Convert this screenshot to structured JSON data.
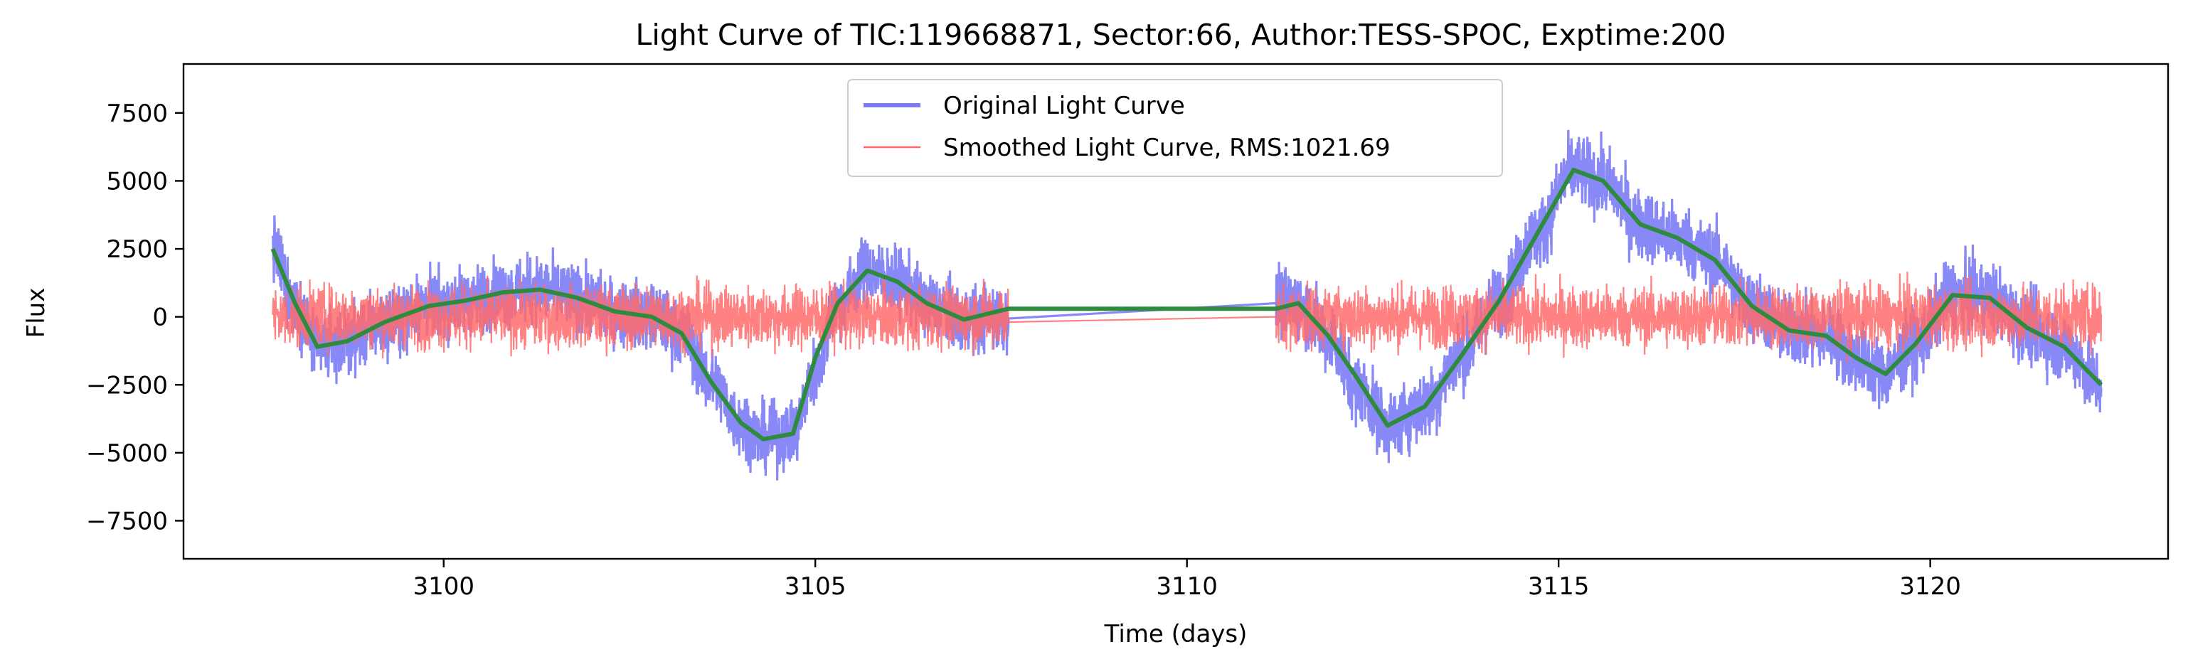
{
  "chart_data": {
    "type": "line",
    "title": "Light Curve of TIC:119668871, Sector:66, Author:TESS-SPOC, Exptime:200",
    "xlabel": "Time (days)",
    "ylabel": "Flux",
    "xlim": [
      3096.5,
      3123.2
    ],
    "ylim": [
      -8900,
      9300
    ],
    "xticks": [
      3100,
      3105,
      3110,
      3115,
      3120
    ],
    "yticks": [
      -7500,
      -5000,
      -2500,
      0,
      2500,
      5000,
      7500
    ],
    "xtick_labels": [
      "3100",
      "3105",
      "3110",
      "3115",
      "3120"
    ],
    "ytick_labels": [
      "−7500",
      "−5000",
      "−2500",
      "0",
      "2500",
      "5000",
      "7500"
    ],
    "grid": false,
    "legend": {
      "location": "top-center",
      "entries": [
        "Original Light Curve",
        "Smoothed Light Curve, RMS:1021.69"
      ]
    },
    "series": [
      {
        "name": "Original Light Curve",
        "color": "#7b7bf5",
        "style": "dense noisy line",
        "segments": [
          {
            "x_start": 3097.7,
            "x_end": 3107.6,
            "noise_amplitude": 1400
          },
          {
            "x_start": 3111.2,
            "x_end": 3122.3,
            "noise_amplitude": 1500
          }
        ],
        "trend_points": [
          [
            3097.7,
            2500
          ],
          [
            3098.0,
            500
          ],
          [
            3098.3,
            -1100
          ],
          [
            3098.7,
            -900
          ],
          [
            3099.2,
            -200
          ],
          [
            3099.8,
            400
          ],
          [
            3100.3,
            600
          ],
          [
            3100.8,
            900
          ],
          [
            3101.3,
            1000
          ],
          [
            3101.8,
            700
          ],
          [
            3102.3,
            200
          ],
          [
            3102.8,
            0
          ],
          [
            3103.2,
            -600
          ],
          [
            3103.6,
            -2400
          ],
          [
            3104.0,
            -3900
          ],
          [
            3104.3,
            -4500
          ],
          [
            3104.7,
            -4300
          ],
          [
            3105.0,
            -2000
          ],
          [
            3105.3,
            500
          ],
          [
            3105.7,
            1700
          ],
          [
            3106.1,
            1300
          ],
          [
            3106.5,
            500
          ],
          [
            3107.0,
            -100
          ],
          [
            3107.6,
            0
          ],
          [
            3111.2,
            500
          ],
          [
            3111.5,
            500
          ],
          [
            3111.9,
            -700
          ],
          [
            3112.3,
            -2600
          ],
          [
            3112.7,
            -4000
          ],
          [
            3113.2,
            -3300
          ],
          [
            3113.7,
            -1400
          ],
          [
            3114.2,
            600
          ],
          [
            3114.7,
            3000
          ],
          [
            3115.2,
            5400
          ],
          [
            3115.6,
            5000
          ],
          [
            3116.1,
            3400
          ],
          [
            3116.6,
            2900
          ],
          [
            3117.1,
            2100
          ],
          [
            3117.6,
            400
          ],
          [
            3118.1,
            -500
          ],
          [
            3118.6,
            -700
          ],
          [
            3119.0,
            -1500
          ],
          [
            3119.4,
            -2100
          ],
          [
            3119.8,
            -1000
          ],
          [
            3120.3,
            800
          ],
          [
            3120.8,
            700
          ],
          [
            3121.3,
            -400
          ],
          [
            3121.8,
            -1100
          ],
          [
            3122.3,
            -2500
          ]
        ]
      },
      {
        "name": "Smoothed Light Curve, RMS:1021.69",
        "color": "#ff6b6b",
        "style": "dense noisy line (residual)",
        "segments": [
          {
            "x_start": 3097.7,
            "x_end": 3107.6,
            "noise_amplitude": 1300
          },
          {
            "x_start": 3111.2,
            "x_end": 3122.3,
            "noise_amplitude": 1300
          }
        ],
        "trend_points": [
          [
            3097.7,
            0
          ],
          [
            3107.6,
            0
          ],
          [
            3111.2,
            0
          ],
          [
            3122.3,
            0
          ]
        ]
      },
      {
        "name": "trend",
        "color": "#2e8b3e",
        "style": "smooth line",
        "points": [
          [
            3097.7,
            2500
          ],
          [
            3098.0,
            500
          ],
          [
            3098.3,
            -1100
          ],
          [
            3098.7,
            -900
          ],
          [
            3099.2,
            -200
          ],
          [
            3099.8,
            400
          ],
          [
            3100.3,
            600
          ],
          [
            3100.8,
            900
          ],
          [
            3101.3,
            1000
          ],
          [
            3101.8,
            700
          ],
          [
            3102.3,
            200
          ],
          [
            3102.8,
            0
          ],
          [
            3103.2,
            -600
          ],
          [
            3103.6,
            -2400
          ],
          [
            3104.0,
            -3900
          ],
          [
            3104.3,
            -4500
          ],
          [
            3104.7,
            -4300
          ],
          [
            3105.0,
            -1500
          ],
          [
            3105.3,
            500
          ],
          [
            3105.7,
            1700
          ],
          [
            3106.1,
            1300
          ],
          [
            3106.5,
            500
          ],
          [
            3107.0,
            -100
          ],
          [
            3107.6,
            300
          ],
          [
            3111.2,
            300
          ],
          [
            3111.5,
            500
          ],
          [
            3111.9,
            -700
          ],
          [
            3112.3,
            -2300
          ],
          [
            3112.7,
            -4000
          ],
          [
            3113.2,
            -3300
          ],
          [
            3113.7,
            -1400
          ],
          [
            3114.2,
            600
          ],
          [
            3114.7,
            3000
          ],
          [
            3115.2,
            5400
          ],
          [
            3115.6,
            5000
          ],
          [
            3116.1,
            3400
          ],
          [
            3116.6,
            2900
          ],
          [
            3117.1,
            2100
          ],
          [
            3117.6,
            400
          ],
          [
            3118.1,
            -500
          ],
          [
            3118.6,
            -700
          ],
          [
            3119.0,
            -1500
          ],
          [
            3119.4,
            -2100
          ],
          [
            3119.8,
            -1000
          ],
          [
            3120.3,
            800
          ],
          [
            3120.8,
            700
          ],
          [
            3121.3,
            -400
          ],
          [
            3121.8,
            -1100
          ],
          [
            3122.3,
            -2500
          ]
        ]
      }
    ]
  }
}
